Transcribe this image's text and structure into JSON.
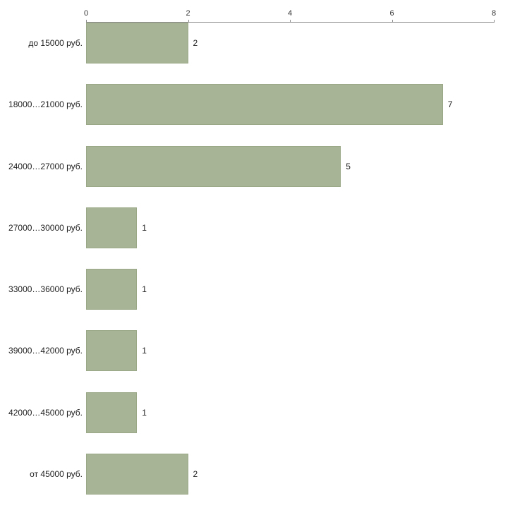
{
  "chart_data": {
    "type": "bar",
    "orientation": "horizontal",
    "title": "",
    "xlabel": "",
    "ylabel": "",
    "categories": [
      "до 15000 руб.",
      "18000…21000 руб.",
      "24000…27000 руб.",
      "27000…30000 руб.",
      "33000…36000 руб.",
      "39000…42000 руб.",
      "42000…45000 руб.",
      "от 45000 руб."
    ],
    "values": [
      2,
      7,
      5,
      1,
      1,
      1,
      1,
      2
    ],
    "xlim": [
      0,
      8
    ],
    "xticks": [
      0,
      2,
      4,
      6,
      8
    ],
    "grid": false,
    "legend": false,
    "bar_color": "#a8b496",
    "axis_color": "#8c8c8c",
    "text_color": "#222222"
  }
}
